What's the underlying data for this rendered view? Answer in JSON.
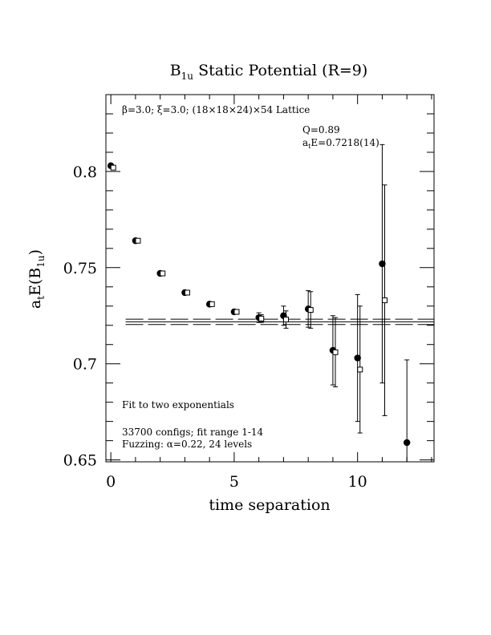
{
  "chart_data": {
    "type": "scatter",
    "title_main": "B",
    "title_sub": "1u",
    "title_rest": " Static Potential (R=9)",
    "ylabel_main": "a",
    "ylabel_sub_t": "t",
    "ylabel_mid": "E(B",
    "ylabel_sub": "1u",
    "ylabel_end": ")",
    "xlabel": "time separation",
    "xlim": [
      -0.2,
      13.1
    ],
    "ylim": [
      0.649,
      0.84
    ],
    "x_ticks": [
      0,
      5,
      10
    ],
    "x_tick_labels": [
      "0",
      "5",
      "10"
    ],
    "y_ticks": [
      0.65,
      0.7,
      0.75,
      0.8
    ],
    "y_tick_labels": [
      "0.65",
      "0.7",
      "0.75",
      "0.8"
    ],
    "annotations": {
      "lattice": "β=3.0; ξ=3.0; (18×18×24)×54 Lattice",
      "q": "Q=0.89",
      "energy_main": "a",
      "energy_sub": "t",
      "energy_rest": "E=0.7218(14)",
      "fit": "Fit to two exponentials",
      "configs": "33700 configs; fit range 1-14",
      "fuzzing": "Fuzzing: α=0.22, 24 levels"
    },
    "fit": {
      "value": 0.7218,
      "error": 0.0014,
      "x_range": [
        0.6,
        13.1
      ]
    },
    "series": [
      {
        "marker": "filled-circle",
        "points": [
          {
            "x": 0,
            "y": 0.803,
            "err": 0.0005
          },
          {
            "x": 1,
            "y": 0.764,
            "err": 0.0006
          },
          {
            "x": 2,
            "y": 0.747,
            "err": 0.0007
          },
          {
            "x": 3,
            "y": 0.737,
            "err": 0.0008
          },
          {
            "x": 4,
            "y": 0.731,
            "err": 0.0009
          },
          {
            "x": 5,
            "y": 0.727,
            "err": 0.0012
          },
          {
            "x": 6,
            "y": 0.724,
            "err": 0.0025
          },
          {
            "x": 7,
            "y": 0.725,
            "err": 0.005
          },
          {
            "x": 8,
            "y": 0.7285,
            "err": 0.0095
          },
          {
            "x": 9,
            "y": 0.707,
            "err": 0.018
          },
          {
            "x": 10,
            "y": 0.703,
            "err": 0.033
          },
          {
            "x": 11,
            "y": 0.752,
            "err": 0.062
          },
          {
            "x": 12,
            "y": 0.659,
            "err": 0.043
          }
        ]
      },
      {
        "marker": "open-square",
        "x_offset": 0.1,
        "points": [
          {
            "x": 0,
            "y": 0.802,
            "err": 0.0005
          },
          {
            "x": 1,
            "y": 0.764,
            "err": 0.0006
          },
          {
            "x": 2,
            "y": 0.747,
            "err": 0.0007
          },
          {
            "x": 3,
            "y": 0.737,
            "err": 0.0008
          },
          {
            "x": 4,
            "y": 0.731,
            "err": 0.0009
          },
          {
            "x": 5,
            "y": 0.727,
            "err": 0.0012
          },
          {
            "x": 6,
            "y": 0.7235,
            "err": 0.002
          },
          {
            "x": 7,
            "y": 0.723,
            "err": 0.0045
          },
          {
            "x": 8,
            "y": 0.728,
            "err": 0.0095
          },
          {
            "x": 9,
            "y": 0.706,
            "err": 0.018
          },
          {
            "x": 10,
            "y": 0.697,
            "err": 0.033
          },
          {
            "x": 11,
            "y": 0.733,
            "err": 0.06
          }
        ]
      }
    ]
  }
}
